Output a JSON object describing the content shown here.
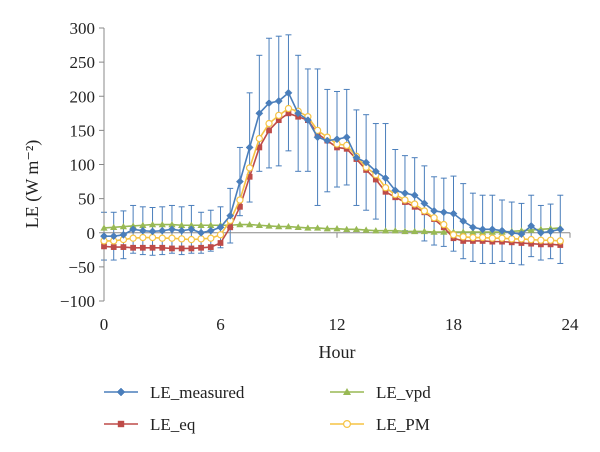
{
  "chart_data": {
    "type": "line",
    "xlabel": "Hour",
    "ylabel": "LE (W m⁻²)",
    "xlim": [
      0,
      24
    ],
    "ylim": [
      -100,
      300
    ],
    "xticks": [
      0,
      6,
      12,
      18,
      24
    ],
    "yticks": [
      -100,
      -50,
      0,
      50,
      100,
      150,
      200,
      250,
      300
    ],
    "grid": false,
    "legend_position": "bottom",
    "x": [
      0,
      0.5,
      1,
      1.5,
      2,
      2.5,
      3,
      3.5,
      4,
      4.5,
      5,
      5.5,
      6,
      6.5,
      7,
      7.5,
      8,
      8.5,
      9,
      9.5,
      10,
      10.5,
      11,
      11.5,
      12,
      12.5,
      13,
      13.5,
      14,
      14.5,
      15,
      15.5,
      16,
      16.5,
      17,
      17.5,
      18,
      18.5,
      19,
      19.5,
      20,
      20.5,
      21,
      21.5,
      22,
      22.5,
      23,
      23.5
    ],
    "series": [
      {
        "name": "LE_measured",
        "color": "#4a7ebb",
        "marker": "diamond",
        "values": [
          -5,
          -5,
          -3,
          5,
          3,
          2,
          3,
          5,
          3,
          5,
          0,
          3,
          8,
          25,
          75,
          125,
          175,
          190,
          193,
          205,
          175,
          165,
          140,
          135,
          137,
          140,
          110,
          103,
          90,
          80,
          62,
          58,
          55,
          43,
          32,
          30,
          28,
          17,
          8,
          5,
          5,
          3,
          0,
          -2,
          10,
          0,
          2,
          5
        ],
        "error": [
          35,
          35,
          35,
          35,
          35,
          35,
          35,
          35,
          35,
          35,
          30,
          30,
          30,
          40,
          50,
          80,
          85,
          95,
          95,
          85,
          85,
          75,
          100,
          75,
          70,
          70,
          70,
          70,
          70,
          80,
          60,
          55,
          55,
          55,
          50,
          50,
          55,
          55,
          50,
          50,
          50,
          45,
          45,
          45,
          45,
          40,
          40,
          50
        ]
      },
      {
        "name": "LE_eq",
        "color": "#be4b48",
        "marker": "square",
        "values": [
          -20,
          -21,
          -21,
          -22,
          -22,
          -22,
          -22,
          -23,
          -23,
          -23,
          -22,
          -21,
          -15,
          8,
          38,
          82,
          125,
          150,
          165,
          175,
          170,
          165,
          145,
          135,
          125,
          123,
          108,
          92,
          78,
          60,
          52,
          45,
          38,
          30,
          20,
          8,
          -8,
          -12,
          -12,
          -12,
          -13,
          -13,
          -14,
          -15,
          -16,
          -17,
          -17,
          -18
        ]
      },
      {
        "name": "LE_vpd",
        "color": "#98b954",
        "marker": "triangle",
        "values": [
          7,
          8,
          9,
          10,
          11,
          12,
          12,
          12,
          11,
          11,
          11,
          11,
          11,
          11,
          12,
          12,
          11,
          10,
          9,
          9,
          8,
          7,
          7,
          6,
          6,
          5,
          5,
          4,
          3,
          3,
          3,
          2,
          2,
          2,
          1,
          1,
          1,
          1,
          1,
          1,
          1,
          1,
          2,
          3,
          4,
          5,
          6,
          7
        ]
      },
      {
        "name": "LE_PM",
        "color": "#f5c344",
        "marker": "circle",
        "values": [
          -12,
          -12,
          -10,
          -8,
          -7,
          -7,
          -8,
          -8,
          -9,
          -10,
          -9,
          -8,
          -3,
          18,
          48,
          95,
          138,
          160,
          172,
          182,
          178,
          170,
          150,
          140,
          130,
          128,
          112,
          96,
          85,
          66,
          56,
          48,
          42,
          32,
          22,
          12,
          -3,
          -6,
          -7,
          -7,
          -8,
          -8,
          -9,
          -9,
          -10,
          -11,
          -11,
          -12
        ]
      }
    ]
  }
}
